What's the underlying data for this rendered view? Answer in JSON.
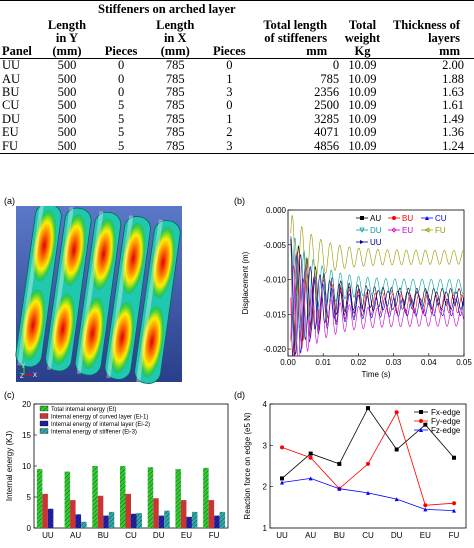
{
  "table": {
    "group_header": "Stiffeners on arched layer",
    "columns": [
      "Panel",
      "Length in Y (mm)",
      "Pieces",
      "Length in X (mm)",
      "Pieces",
      "Total length of stiffeners mm",
      "Total weight Kg",
      "Thickness of layers mm"
    ],
    "column_lines": [
      [
        "",
        "",
        "Panel"
      ],
      [
        "Length",
        "in Y",
        "(mm)"
      ],
      [
        "",
        "",
        "Pieces"
      ],
      [
        "Length",
        "in X",
        "(mm)"
      ],
      [
        "",
        "",
        "Pieces"
      ],
      [
        "Total length",
        "of stiffeners",
        "mm"
      ],
      [
        "Total",
        "weight",
        "Kg"
      ],
      [
        "Thickness of",
        "layers",
        "mm"
      ]
    ],
    "rows": [
      [
        "UU",
        "500",
        "0",
        "785",
        "0",
        "0",
        "10.09",
        "2.00"
      ],
      [
        "AU",
        "500",
        "0",
        "785",
        "1",
        "785",
        "10.09",
        "1.88"
      ],
      [
        "BU",
        "500",
        "0",
        "785",
        "3",
        "2356",
        "10.09",
        "1.63"
      ],
      [
        "CU",
        "500",
        "5",
        "785",
        "0",
        "2500",
        "10.09",
        "1.61"
      ],
      [
        "DU",
        "500",
        "5",
        "785",
        "1",
        "3285",
        "10.09",
        "1.49"
      ],
      [
        "EU",
        "500",
        "5",
        "785",
        "2",
        "4071",
        "10.09",
        "1.36"
      ],
      [
        "FU",
        "500",
        "5",
        "785",
        "3",
        "4856",
        "10.09",
        "1.24"
      ]
    ]
  },
  "panel_a": {
    "label": "(a)",
    "axis_letters": [
      "Y",
      "X",
      "Z"
    ]
  },
  "chart_data": [
    {
      "id": "b",
      "type": "line",
      "label": "(b)",
      "xlabel": "Time (s)",
      "ylabel": "Displacement (m)",
      "xlim": [
        0,
        0.05
      ],
      "ylim": [
        -0.021,
        0.0
      ],
      "xticks": [
        "0.00",
        "0.01",
        "0.02",
        "0.03",
        "0.04",
        "0.05"
      ],
      "yticks": [
        "0.000",
        "-0.005",
        "-0.010",
        "-0.015",
        "-0.020"
      ],
      "legend_position": "top-right",
      "series": [
        {
          "name": "AU",
          "color": "#000000",
          "marker": "square",
          "final": -0.0125,
          "amp0": 0.0095,
          "amp1": 0.0012
        },
        {
          "name": "BU",
          "color": "#ff0000",
          "marker": "circle",
          "final": -0.0135,
          "amp0": 0.009,
          "amp1": 0.0013
        },
        {
          "name": "CU",
          "color": "#0000ff",
          "marker": "triangle",
          "final": -0.014,
          "amp0": 0.009,
          "amp1": 0.0012
        },
        {
          "name": "DU",
          "color": "#00a0a0",
          "marker": "triangle-down",
          "final": -0.011,
          "amp0": 0.008,
          "amp1": 0.001
        },
        {
          "name": "EU",
          "color": "#cc00cc",
          "marker": "diamond",
          "final": -0.0155,
          "amp0": 0.008,
          "amp1": 0.0012
        },
        {
          "name": "FU",
          "color": "#999900",
          "marker": "triangle-left",
          "final": -0.0068,
          "amp0": 0.006,
          "amp1": 0.001
        },
        {
          "name": "UU",
          "color": "#000080",
          "marker": "triangle-right",
          "final": -0.013,
          "amp0": 0.009,
          "amp1": 0.0012
        }
      ]
    },
    {
      "id": "c",
      "type": "bar",
      "label": "(c)",
      "ylabel": "Internal energy (KJ)",
      "ylim": [
        0,
        20
      ],
      "yticks": [
        "0",
        "5",
        "10",
        "15",
        "20"
      ],
      "categories": [
        "UU",
        "AU",
        "BU",
        "CU",
        "DU",
        "EU",
        "FU"
      ],
      "legend_position": "top-left",
      "series": [
        {
          "name": "Total internal energy (Et)",
          "color": "#33cc33",
          "pattern": "hatch",
          "values": [
            9.5,
            9.1,
            10.0,
            10.0,
            9.8,
            9.5,
            9.7
          ]
        },
        {
          "name": "Internal energy of curved layer (Ei-1)",
          "color": "#cc3333",
          "pattern": "solid",
          "values": [
            5.5,
            4.5,
            5.2,
            5.5,
            4.8,
            4.5,
            4.5
          ]
        },
        {
          "name": "Internal energy of internal layer (Ei-2)",
          "color": "#2222aa",
          "pattern": "hatch",
          "values": [
            3.1,
            2.2,
            2.0,
            2.3,
            2.0,
            1.8,
            2.0
          ]
        },
        {
          "name": "Internal energy of stiffener (Ei-3)",
          "color": "#33aaaa",
          "pattern": "hatch",
          "values": [
            0.0,
            1.0,
            2.6,
            2.4,
            2.8,
            2.6,
            2.6
          ]
        }
      ]
    },
    {
      "id": "d",
      "type": "line",
      "label": "(d)",
      "ylabel": "Reaction force on edge (e5 N)",
      "ylim": [
        1,
        4
      ],
      "yticks": [
        "1",
        "2",
        "3",
        "4"
      ],
      "categories": [
        "UU",
        "AU",
        "BU",
        "CU",
        "DU",
        "EU",
        "FU"
      ],
      "legend_position": "top-right",
      "series": [
        {
          "name": "Fx-edge",
          "color": "#000000",
          "marker": "square",
          "values": [
            2.2,
            2.8,
            2.55,
            3.9,
            2.9,
            3.5,
            2.7
          ]
        },
        {
          "name": "Fy-edge",
          "color": "#ff0000",
          "marker": "circle",
          "values": [
            2.95,
            2.7,
            1.95,
            2.55,
            3.8,
            1.55,
            1.6
          ]
        },
        {
          "name": "Fz-edge",
          "color": "#0000ff",
          "marker": "triangle",
          "values": [
            2.1,
            2.2,
            1.95,
            1.85,
            1.7,
            1.45,
            1.42
          ]
        }
      ]
    }
  ]
}
